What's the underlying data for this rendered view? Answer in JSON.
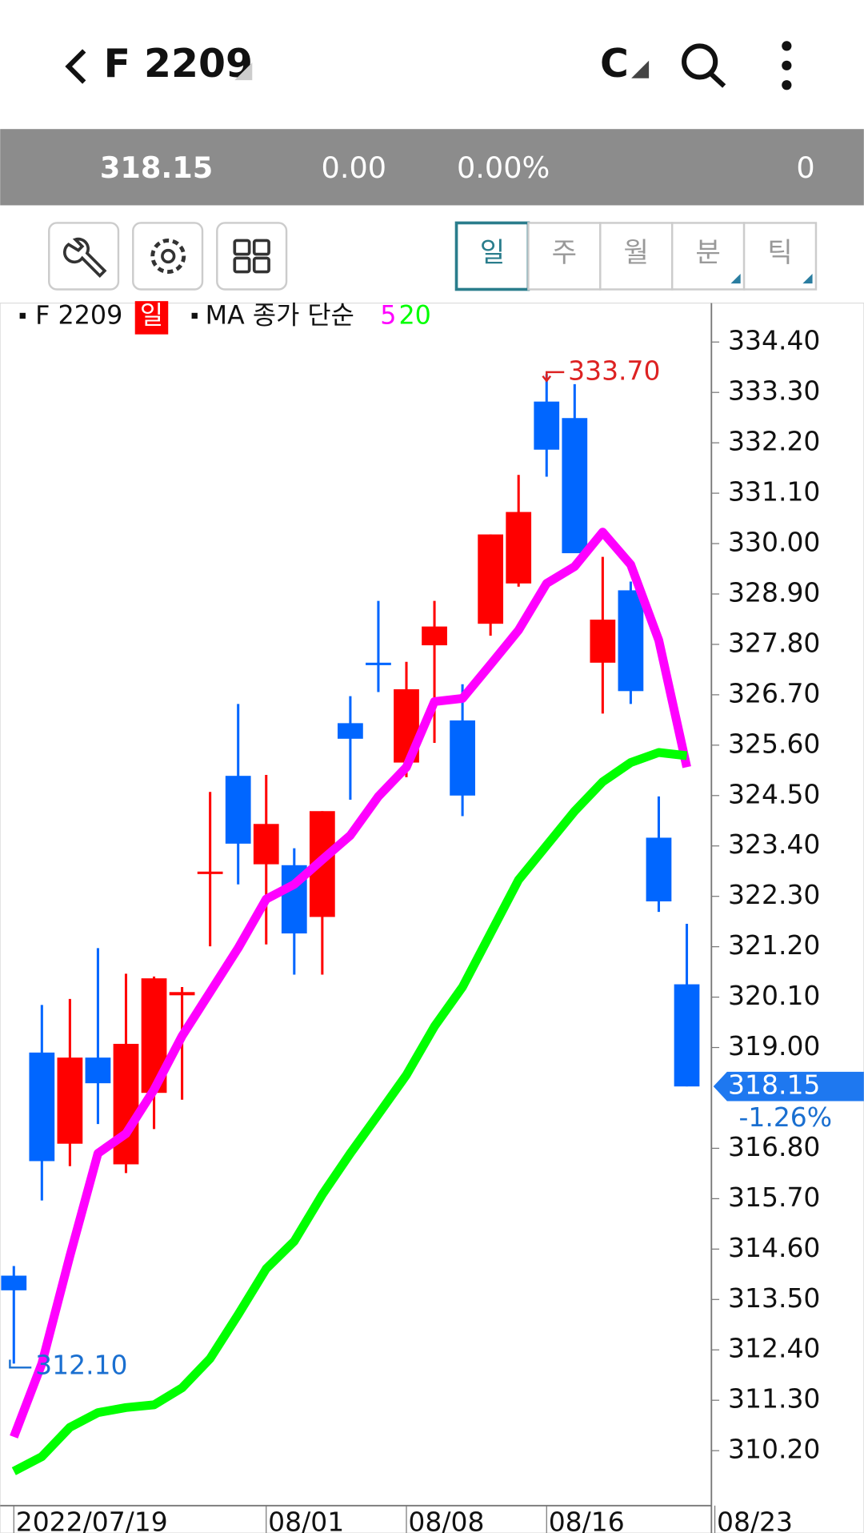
{
  "header": {
    "title": "F 2209",
    "code_type": "C"
  },
  "quote": {
    "price": "318.15",
    "change": "0.00",
    "change_pct": "0.00%",
    "volume": "0"
  },
  "tabs": [
    "일",
    "주",
    "월",
    "분",
    "틱"
  ],
  "chart_data": {
    "type": "candlestick",
    "legend": {
      "symbol": "F 2209",
      "period": "일",
      "ma_label": "MA 종가 단순"
    },
    "categories": [
      "2022/07/19",
      null,
      null,
      null,
      null,
      null,
      null,
      null,
      null,
      "08/01",
      null,
      null,
      null,
      null,
      "08/08",
      null,
      null,
      null,
      null,
      "08/16",
      null,
      null,
      null,
      null,
      null,
      "08/23"
    ],
    "series": [
      {
        "name": "F 2209",
        "up_color": "#ff0000",
        "down_color": "#0066ff",
        "open": [
          314.02,
          318.89,
          316.9,
          318.78,
          316.45,
          318.01,
          320.14,
          322.8,
          324.93,
          323.0,
          322.98,
          321.85,
          326.08,
          327.4,
          325.22,
          327.78,
          326.14,
          328.25,
          329.13,
          333.1,
          332.74,
          327.4,
          328.98,
          323.58,
          320.38,
          null
        ],
        "high": [
          314.23,
          319.93,
          320.06,
          321.17,
          320.61,
          320.55,
          320.32,
          324.58,
          326.5,
          324.95,
          323.35,
          324.16,
          326.67,
          328.75,
          327.42,
          328.75,
          326.93,
          330.2,
          331.5,
          333.7,
          333.48,
          329.71,
          329.17,
          324.48,
          321.7,
          null
        ],
        "low": [
          312.1,
          315.66,
          316.41,
          317.33,
          316.26,
          317.22,
          317.86,
          321.21,
          322.56,
          321.25,
          320.59,
          320.59,
          324.41,
          326.76,
          324.9,
          325.65,
          324.05,
          327.99,
          329.06,
          331.46,
          329.79,
          326.29,
          326.5,
          321.96,
          318.15,
          null
        ],
        "close": [
          313.7,
          316.52,
          318.78,
          318.22,
          319.08,
          320.51,
          320.21,
          322.84,
          323.45,
          323.88,
          321.49,
          324.16,
          325.74,
          327.36,
          326.82,
          328.19,
          324.5,
          330.2,
          330.69,
          332.05,
          329.79,
          328.34,
          326.78,
          322.19,
          318.15,
          null
        ]
      },
      {
        "name": "5",
        "color": "#ff00ff",
        "values": [
          310.5,
          312.1,
          314.45,
          316.69,
          317.12,
          318.08,
          319.25,
          320.21,
          321.17,
          322.24,
          322.56,
          323.1,
          323.63,
          324.48,
          325.12,
          326.55,
          326.62,
          327.36,
          328.11,
          329.13,
          329.5,
          330.25,
          329.54,
          327.89,
          325.12,
          null
        ]
      },
      {
        "name": "20",
        "color": "#00ff00",
        "values": [
          309.75,
          310.07,
          310.71,
          311.03,
          311.14,
          311.2,
          311.57,
          312.21,
          313.17,
          314.17,
          314.77,
          315.79,
          316.69,
          317.54,
          318.4,
          319.46,
          320.32,
          321.49,
          322.66,
          323.41,
          324.16,
          324.8,
          325.22,
          325.44,
          325.37,
          null
        ]
      }
    ],
    "ylim": [
      309.0,
      335.25
    ],
    "yticks": [
      {
        "value": 334.4,
        "label": "334.40"
      },
      {
        "value": 333.3,
        "label": "333.30"
      },
      {
        "value": 332.2,
        "label": "332.20"
      },
      {
        "value": 331.1,
        "label": "331.10"
      },
      {
        "value": 330.0,
        "label": "330.00"
      },
      {
        "value": 328.9,
        "label": "328.90"
      },
      {
        "value": 327.8,
        "label": "327.80"
      },
      {
        "value": 326.7,
        "label": "326.70"
      },
      {
        "value": 325.6,
        "label": "325.60"
      },
      {
        "value": 324.5,
        "label": "324.50"
      },
      {
        "value": 323.4,
        "label": "323.40"
      },
      {
        "value": 322.3,
        "label": "322.30"
      },
      {
        "value": 321.2,
        "label": "321.20"
      },
      {
        "value": 320.1,
        "label": "320.10"
      },
      {
        "value": 319.0,
        "label": "319.00"
      },
      {
        "value": 316.8,
        "label": "316.80"
      },
      {
        "value": 315.7,
        "label": "315.70"
      },
      {
        "value": 314.6,
        "label": "314.60"
      },
      {
        "value": 313.5,
        "label": "313.50"
      },
      {
        "value": 312.4,
        "label": "312.40"
      },
      {
        "value": 311.3,
        "label": "311.30"
      },
      {
        "value": 310.2,
        "label": "310.20"
      }
    ],
    "high_marker": {
      "index": 19,
      "value": 333.7,
      "label": "333.70"
    },
    "low_marker": {
      "index": 0,
      "value": 312.1,
      "label": "312.10"
    },
    "last_price": {
      "value": 318.15,
      "label": "318.15",
      "change": "-1.26%"
    }
  }
}
